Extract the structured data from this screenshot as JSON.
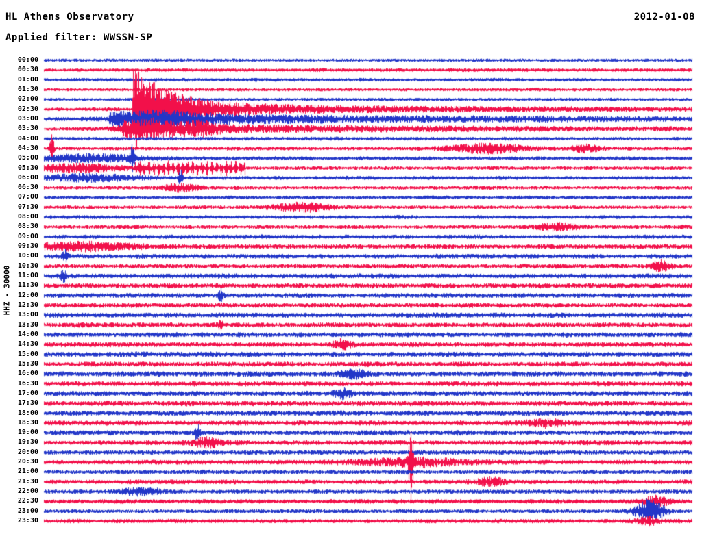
{
  "header": {
    "title": "HL Athens Observatory",
    "date": "2012-01-08",
    "filter_label": "Applied filter: WWSSN-SP"
  },
  "axis": {
    "left_label": "HHZ - 30000"
  },
  "chart_data": {
    "type": "line",
    "subtype": "seismogram-helicorder",
    "station": "HL Athens Observatory",
    "channel_scale_label": "HHZ - 30000",
    "date": "2012-01-08",
    "filter": "WWSSN-SP",
    "row_interval_minutes": 30,
    "first_row_time": "00:00",
    "last_row_time": "23:30",
    "colors": {
      "blue": "#2236c8",
      "red": "#f2104a"
    },
    "rows": [
      {
        "label": "00:00",
        "color": "blue",
        "base_amp": 2.1
      },
      {
        "label": "00:30",
        "color": "red",
        "base_amp": 2.2
      },
      {
        "label": "01:00",
        "color": "blue",
        "base_amp": 2.3
      },
      {
        "label": "01:30",
        "color": "red",
        "base_amp": 2.2
      },
      {
        "label": "02:00",
        "color": "blue",
        "base_amp": 2.1
      },
      {
        "label": "02:30",
        "color": "red",
        "base_amp": 2.3
      },
      {
        "label": "03:00",
        "color": "blue",
        "base_amp": 2.6
      },
      {
        "label": "03:30",
        "color": "red",
        "base_amp": 2.6
      },
      {
        "label": "04:00",
        "color": "blue",
        "base_amp": 2.4
      },
      {
        "label": "04:30",
        "color": "red",
        "base_amp": 2.5
      },
      {
        "label": "05:00",
        "color": "blue",
        "base_amp": 2.4
      },
      {
        "label": "05:30",
        "color": "red",
        "base_amp": 2.5
      },
      {
        "label": "06:00",
        "color": "blue",
        "base_amp": 2.4
      },
      {
        "label": "06:30",
        "color": "red",
        "base_amp": 2.3
      },
      {
        "label": "07:00",
        "color": "blue",
        "base_amp": 2.3
      },
      {
        "label": "07:30",
        "color": "red",
        "base_amp": 2.4
      },
      {
        "label": "08:00",
        "color": "blue",
        "base_amp": 2.4
      },
      {
        "label": "08:30",
        "color": "red",
        "base_amp": 2.5
      },
      {
        "label": "09:00",
        "color": "blue",
        "base_amp": 2.6
      },
      {
        "label": "09:30",
        "color": "red",
        "base_amp": 3.0
      },
      {
        "label": "10:00",
        "color": "blue",
        "base_amp": 2.9
      },
      {
        "label": "10:30",
        "color": "red",
        "base_amp": 2.9
      },
      {
        "label": "11:00",
        "color": "blue",
        "base_amp": 3.0
      },
      {
        "label": "11:30",
        "color": "red",
        "base_amp": 3.1
      },
      {
        "label": "12:00",
        "color": "blue",
        "base_amp": 3.0
      },
      {
        "label": "12:30",
        "color": "red",
        "base_amp": 3.1
      },
      {
        "label": "13:00",
        "color": "blue",
        "base_amp": 3.2
      },
      {
        "label": "13:30",
        "color": "red",
        "base_amp": 3.2
      },
      {
        "label": "14:00",
        "color": "blue",
        "base_amp": 3.1
      },
      {
        "label": "14:30",
        "color": "red",
        "base_amp": 3.2
      },
      {
        "label": "15:00",
        "color": "blue",
        "base_amp": 3.3
      },
      {
        "label": "15:30",
        "color": "red",
        "base_amp": 3.2
      },
      {
        "label": "16:00",
        "color": "blue",
        "base_amp": 3.3
      },
      {
        "label": "16:30",
        "color": "red",
        "base_amp": 3.2
      },
      {
        "label": "17:00",
        "color": "blue",
        "base_amp": 3.3
      },
      {
        "label": "17:30",
        "color": "red",
        "base_amp": 3.4
      },
      {
        "label": "18:00",
        "color": "blue",
        "base_amp": 3.3
      },
      {
        "label": "18:30",
        "color": "red",
        "base_amp": 3.2
      },
      {
        "label": "19:00",
        "color": "blue",
        "base_amp": 3.2
      },
      {
        "label": "19:30",
        "color": "red",
        "base_amp": 3.1
      },
      {
        "label": "20:00",
        "color": "blue",
        "base_amp": 3.0
      },
      {
        "label": "20:30",
        "color": "red",
        "base_amp": 3.0
      },
      {
        "label": "21:00",
        "color": "blue",
        "base_amp": 2.9
      },
      {
        "label": "21:30",
        "color": "red",
        "base_amp": 2.9
      },
      {
        "label": "22:00",
        "color": "blue",
        "base_amp": 2.8
      },
      {
        "label": "22:30",
        "color": "red",
        "base_amp": 2.8
      },
      {
        "label": "23:00",
        "color": "blue",
        "base_amp": 2.7
      },
      {
        "label": "23:30",
        "color": "red",
        "base_amp": 2.7
      }
    ],
    "events": [
      {
        "row": 5,
        "type": "quake",
        "pos": 0.136,
        "amp": 56,
        "decay": 55,
        "coda": 420
      },
      {
        "row": 6,
        "type": "coda",
        "pos": 0.1,
        "amp": 7,
        "decay": 500
      },
      {
        "row": 6,
        "type": "burst",
        "pos": 0.18,
        "amp": 5,
        "width": 50
      },
      {
        "row": 7,
        "type": "coda",
        "pos": 0.12,
        "amp": 6,
        "decay": 400
      },
      {
        "row": 7,
        "type": "burst",
        "pos": 0.16,
        "amp": 9,
        "width": 30
      },
      {
        "row": 7,
        "type": "burst",
        "pos": 0.24,
        "amp": 6,
        "width": 18
      },
      {
        "row": 9,
        "type": "spike",
        "pos": 0.012,
        "amp": 26,
        "width": 2
      },
      {
        "row": 9,
        "type": "burst",
        "pos": 0.685,
        "amp": 6,
        "width": 40
      },
      {
        "row": 9,
        "type": "burst",
        "pos": 0.835,
        "amp": 5,
        "width": 15
      },
      {
        "row": 10,
        "type": "burst",
        "pos": 0.07,
        "amp": 5,
        "width": 55
      },
      {
        "row": 10,
        "type": "spike",
        "pos": 0.136,
        "amp": 18,
        "width": 2
      },
      {
        "row": 11,
        "type": "burst",
        "pos": 0.05,
        "amp": 5,
        "width": 45
      },
      {
        "row": 11,
        "type": "train",
        "pos": 0.14,
        "end": 0.31,
        "amp": 9,
        "interval": 7,
        "width": 1.5
      },
      {
        "row": 12,
        "type": "burst",
        "pos": 0.07,
        "amp": 5,
        "width": 45
      },
      {
        "row": 12,
        "type": "spike",
        "pos": 0.21,
        "amp": 12,
        "width": 2
      },
      {
        "row": 13,
        "type": "burst",
        "pos": 0.21,
        "amp": 5,
        "width": 18
      },
      {
        "row": 15,
        "type": "burst",
        "pos": 0.4,
        "amp": 6,
        "width": 28
      },
      {
        "row": 17,
        "type": "burst",
        "pos": 0.79,
        "amp": 5,
        "width": 22
      },
      {
        "row": 19,
        "type": "burst",
        "pos": 0.05,
        "amp": 5,
        "width": 60
      },
      {
        "row": 20,
        "type": "spike",
        "pos": 0.033,
        "amp": 10,
        "width": 3
      },
      {
        "row": 21,
        "type": "burst",
        "pos": 0.95,
        "amp": 7,
        "width": 10
      },
      {
        "row": 22,
        "type": "spike",
        "pos": 0.03,
        "amp": 8,
        "width": 3
      },
      {
        "row": 24,
        "type": "spike",
        "pos": 0.272,
        "amp": 8,
        "width": 2.5
      },
      {
        "row": 27,
        "type": "spike",
        "pos": 0.272,
        "amp": 7,
        "width": 2
      },
      {
        "row": 29,
        "type": "burst",
        "pos": 0.46,
        "amp": 6,
        "width": 10
      },
      {
        "row": 32,
        "type": "burst",
        "pos": 0.475,
        "amp": 6,
        "width": 12
      },
      {
        "row": 34,
        "type": "burst",
        "pos": 0.46,
        "amp": 7,
        "width": 8
      },
      {
        "row": 37,
        "type": "burst",
        "pos": 0.77,
        "amp": 5,
        "width": 20
      },
      {
        "row": 38,
        "type": "spike",
        "pos": 0.236,
        "amp": 11,
        "width": 3
      },
      {
        "row": 39,
        "type": "burst",
        "pos": 0.25,
        "amp": 6,
        "width": 15
      },
      {
        "row": 41,
        "type": "spike",
        "pos": 0.566,
        "amp": 52,
        "width": 2.5
      },
      {
        "row": 41,
        "type": "burst",
        "pos": 0.566,
        "amp": 5,
        "width": 60
      },
      {
        "row": 43,
        "type": "burst",
        "pos": 0.69,
        "amp": 5,
        "width": 15
      },
      {
        "row": 44,
        "type": "burst",
        "pos": 0.15,
        "amp": 5,
        "width": 20
      },
      {
        "row": 45,
        "type": "burst",
        "pos": 0.945,
        "amp": 7,
        "width": 12
      },
      {
        "row": 46,
        "type": "burst",
        "pos": 0.935,
        "amp": 16,
        "width": 14
      },
      {
        "row": 47,
        "type": "burst",
        "pos": 0.93,
        "amp": 5,
        "width": 12
      }
    ]
  }
}
